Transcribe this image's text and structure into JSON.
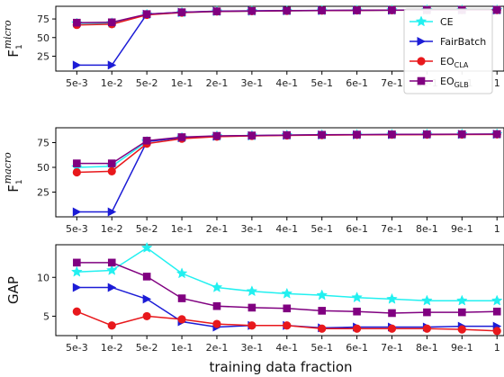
{
  "colors": {
    "CE": "#22f0f0",
    "FairBatch": "#1c1cd6",
    "EO_CLA": "#e8181c",
    "EO_GLB": "#800080"
  },
  "chart_data": [
    {
      "type": "line",
      "ylabel": "F",
      "ylabel_sub": "1",
      "ylabel_sup": "micro",
      "x_tick_labels": [
        "5e-3",
        "1e-2",
        "5e-2",
        "1e-1",
        "2e-1",
        "3e-1",
        "4e-1",
        "5e-1",
        "6e-1",
        "7e-1",
        "8e-1",
        "9e-1",
        "1"
      ],
      "yticks": [
        25,
        50,
        75
      ],
      "ylim": [
        5,
        92
      ],
      "legend": {
        "placement": "lower-right",
        "entries": [
          {
            "name": "CE",
            "sub": "",
            "marker": "star",
            "color_key": "CE"
          },
          {
            "name": "FairBatch",
            "sub": "",
            "marker": "triangle-right",
            "color_key": "FairBatch"
          },
          {
            "name": "EO",
            "sub": "CLA",
            "marker": "circle",
            "color_key": "EO_CLA"
          },
          {
            "name": "EO",
            "sub": "GLB",
            "marker": "square",
            "color_key": "EO_GLB"
          }
        ]
      },
      "series": [
        {
          "key": "CE",
          "marker": "star",
          "values": [
            69,
            69.5,
            81,
            83.5,
            85,
            85.5,
            86,
            86.3,
            86.5,
            86.7,
            87,
            87,
            87
          ]
        },
        {
          "key": "FairBatch",
          "marker": "triangle-right",
          "values": [
            13,
            13,
            81.5,
            84,
            85.5,
            86,
            86.3,
            86.5,
            86.7,
            86.9,
            87,
            87,
            87.2
          ]
        },
        {
          "key": "EO_CLA",
          "marker": "circle",
          "values": [
            67,
            68,
            80.5,
            83.5,
            85,
            85.5,
            86,
            86.3,
            86.5,
            86.7,
            86.8,
            86.9,
            87
          ]
        },
        {
          "key": "EO_GLB",
          "marker": "square",
          "values": [
            70,
            70.5,
            81.5,
            84,
            85.2,
            85.7,
            86.1,
            86.4,
            86.6,
            86.8,
            86.9,
            87,
            87.1
          ]
        }
      ]
    },
    {
      "type": "line",
      "ylabel": "F",
      "ylabel_sub": "1",
      "ylabel_sup": "macro",
      "x_tick_labels": [
        "5e-3",
        "1e-2",
        "5e-2",
        "1e-1",
        "2e-1",
        "3e-1",
        "4e-1",
        "5e-1",
        "6e-1",
        "7e-1",
        "8e-1",
        "9e-1",
        "1"
      ],
      "yticks": [
        25,
        50,
        75
      ],
      "ylim": [
        0,
        90
      ],
      "series": [
        {
          "key": "CE",
          "marker": "star",
          "values": [
            50,
            51,
            76,
            80,
            81.5,
            82,
            82.5,
            82.8,
            83,
            83.2,
            83.3,
            83.4,
            83.5
          ]
        },
        {
          "key": "FairBatch",
          "marker": "triangle-right",
          "values": [
            5,
            5,
            76,
            80,
            81.5,
            82,
            82.5,
            82.8,
            83,
            83.2,
            83.3,
            83.4,
            83.5
          ]
        },
        {
          "key": "EO_CLA",
          "marker": "circle",
          "values": [
            45,
            46,
            74,
            79,
            81,
            81.8,
            82.3,
            82.6,
            82.8,
            83,
            83.1,
            83.2,
            83.3
          ]
        },
        {
          "key": "EO_GLB",
          "marker": "square",
          "values": [
            54,
            54,
            77,
            80.5,
            81.8,
            82.2,
            82.6,
            82.9,
            83.1,
            83.3,
            83.4,
            83.5,
            83.6
          ]
        }
      ]
    },
    {
      "type": "line",
      "ylabel": "GAP",
      "xlabel": "training data fraction",
      "x_tick_labels": [
        "5e-3",
        "1e-2",
        "5e-2",
        "1e-1",
        "2e-1",
        "3e-1",
        "4e-1",
        "5e-1",
        "6e-1",
        "7e-1",
        "8e-1",
        "9e-1",
        "1"
      ],
      "yticks": [
        5,
        10
      ],
      "ylim": [
        2.5,
        14.2
      ],
      "series": [
        {
          "key": "CE",
          "marker": "star",
          "values": [
            10.7,
            10.9,
            13.8,
            10.5,
            8.7,
            8.2,
            7.9,
            7.7,
            7.4,
            7.2,
            7.0,
            7.0,
            7.0
          ]
        },
        {
          "key": "FairBatch",
          "marker": "triangle-right",
          "values": [
            8.7,
            8.7,
            7.2,
            4.3,
            3.6,
            3.8,
            3.8,
            3.5,
            3.6,
            3.6,
            3.6,
            3.7,
            3.7
          ]
        },
        {
          "key": "EO_CLA",
          "marker": "circle",
          "values": [
            5.6,
            3.8,
            5.0,
            4.6,
            4.0,
            3.8,
            3.8,
            3.4,
            3.4,
            3.4,
            3.4,
            3.3,
            3.1
          ]
        },
        {
          "key": "EO_GLB",
          "marker": "square",
          "values": [
            11.9,
            11.9,
            10.1,
            7.3,
            6.3,
            6.1,
            6.0,
            5.7,
            5.6,
            5.4,
            5.5,
            5.5,
            5.6
          ]
        }
      ]
    }
  ]
}
